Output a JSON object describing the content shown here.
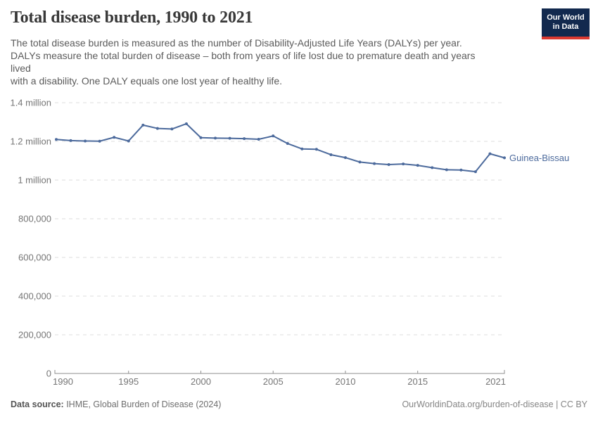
{
  "header": {
    "title": "Total disease burden, 1990 to 2021",
    "subtitle": "The total disease burden is measured as the number of Disability-Adjusted Life Years (DALYs) per year.\nDALYs measure the total burden of disease – both from years of life lost due to premature death and years\nlived\nwith a disability. One DALY equals one lost year of healthy life.",
    "logo": {
      "line1": "Our World",
      "line2": "in Data",
      "bg_color": "#12294E",
      "bar_color": "#DC3A31"
    }
  },
  "chart_data": {
    "type": "line",
    "title": "Total disease burden, 1990 to 2021",
    "xlabel": "",
    "ylabel": "",
    "xlim": [
      1990,
      2021
    ],
    "ylim": [
      0,
      1400000
    ],
    "grid": "horizontal-dashed",
    "legend_position": "end-of-line-label",
    "entity_label": "Guinea-Bissau",
    "x_ticks": [
      1990,
      1995,
      2000,
      2005,
      2010,
      2015,
      2021
    ],
    "y_ticks": [
      {
        "value": 0,
        "label": "0"
      },
      {
        "value": 200000,
        "label": "200,000"
      },
      {
        "value": 400000,
        "label": "400,000"
      },
      {
        "value": 600000,
        "label": "600,000"
      },
      {
        "value": 800000,
        "label": "800,000"
      },
      {
        "value": 1000000,
        "label": "1 million"
      },
      {
        "value": 1200000,
        "label": "1.2 million"
      },
      {
        "value": 1400000,
        "label": "1.4 million"
      }
    ],
    "series": [
      {
        "name": "Guinea-Bissau",
        "color": "#4C6A9C",
        "x": [
          1990,
          1991,
          1992,
          1993,
          1994,
          1995,
          1996,
          1997,
          1998,
          1999,
          2000,
          2001,
          2002,
          2003,
          2004,
          2005,
          2006,
          2007,
          2008,
          2009,
          2010,
          2011,
          2012,
          2013,
          2014,
          2015,
          2016,
          2017,
          2018,
          2019,
          2020,
          2021
        ],
        "values": [
          1210000,
          1204000,
          1202000,
          1201000,
          1221000,
          1202000,
          1284000,
          1267000,
          1264000,
          1291000,
          1219000,
          1217000,
          1216000,
          1214000,
          1211000,
          1228000,
          1189000,
          1161000,
          1159000,
          1131000,
          1116000,
          1093000,
          1085000,
          1080000,
          1083000,
          1076000,
          1064000,
          1053000,
          1052000,
          1043000,
          1136000,
          1115000
        ]
      }
    ],
    "colors": {
      "gridline": "#dedede",
      "axis": "#8f8f8f",
      "tick_text": "#757575"
    }
  },
  "footer": {
    "source_label": "Data source:",
    "source_text": " IHME, Global Burden of Disease (2024)",
    "credit": "OurWorldinData.org/burden-of-disease | CC BY"
  }
}
